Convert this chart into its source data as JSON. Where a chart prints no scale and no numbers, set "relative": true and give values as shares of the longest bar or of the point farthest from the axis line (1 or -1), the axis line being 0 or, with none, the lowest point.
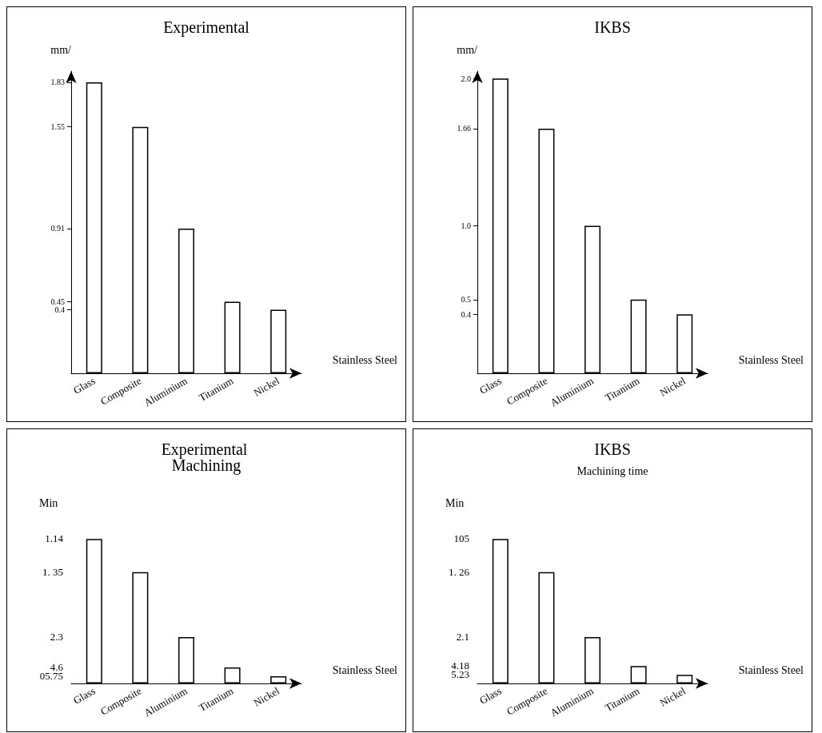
{
  "chart_data": [
    {
      "type": "bar",
      "title": "Experimental",
      "ylabel": "mm/",
      "categories": [
        "Glass",
        "Composite",
        "Aluminium",
        "Titanium",
        "Nickel"
      ],
      "values": [
        1.83,
        1.55,
        0.91,
        0.45,
        0.4
      ],
      "color": "#ffffff",
      "ylim": [
        0,
        1.9
      ],
      "yticks": [
        0.4,
        0.45,
        0.91,
        1.55,
        1.83
      ],
      "annotations": [
        "Stainless Steel"
      ]
    },
    {
      "type": "bar",
      "title": "IKBS",
      "ylabel": "mm/",
      "categories": [
        "Glass",
        "Composite",
        "Aluminium",
        "Titanium",
        "Nickel"
      ],
      "values": [
        2.0,
        1.66,
        1.0,
        0.5,
        0.4
      ],
      "color": "#ffffff",
      "ylim": [
        0,
        2.05
      ],
      "yticks": [
        {
          "value": 0.4,
          "label": "0.4"
        },
        {
          "value": 0.5,
          "label": "0.5"
        },
        {
          "value": 1.0,
          "label": "1.0"
        },
        {
          "value": 1.66,
          "label": "1.66"
        },
        {
          "value": 2.0,
          "label": "2.0"
        }
      ],
      "annotations": [
        "Stainless Steel"
      ]
    },
    {
      "type": "bar",
      "title": "Experimental Machining",
      "ylabel": "Min",
      "categories": [
        "Glass",
        "Composite",
        "Aluminium",
        "Titanium",
        "Nickel"
      ],
      "values": [
        1,
        0.77,
        0.32,
        0.11,
        0.05
      ],
      "relative": true,
      "color": "#ffffff",
      "annotations": [
        "1.14",
        "1. 35",
        "2.3",
        "4.6",
        "05.75",
        "Stainless Steel"
      ]
    },
    {
      "type": "bar",
      "title": "IKBS",
      "subtitle": "Machining time",
      "ylabel": "Min",
      "categories": [
        "Glass",
        "Composite",
        "Aluminium",
        "Titanium",
        "Nickel"
      ],
      "values": [
        1,
        0.77,
        0.32,
        0.12,
        0.06
      ],
      "relative": true,
      "color": "#ffffff",
      "annotations": [
        "105",
        "1. 26",
        "2.1",
        "4.18",
        "5.23",
        "Stainless Steel"
      ]
    }
  ]
}
